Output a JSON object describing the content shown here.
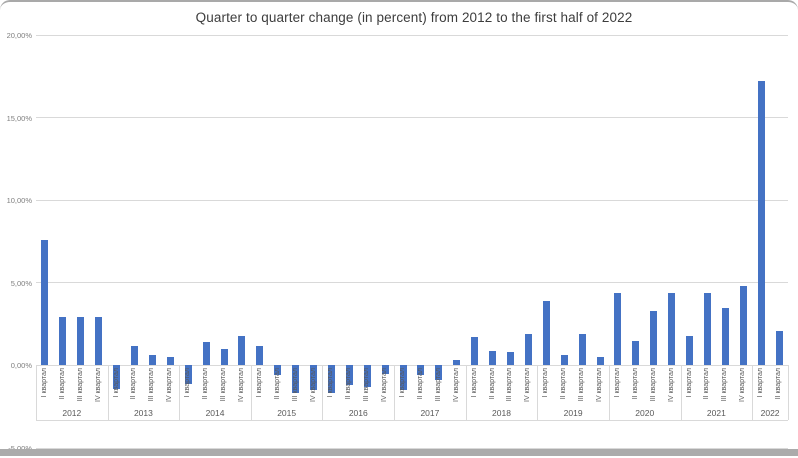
{
  "chart_data": {
    "type": "bar",
    "title": "Quarter to quarter change (in percent) from 2012 to the first half of 2022",
    "legend": "none",
    "grid": true,
    "colors": {
      "bar": "#4472C4",
      "gridline": "#D9D9D9",
      "category_label": "#595959",
      "value_label": "#7F7F7F",
      "title": "#3D3D3D"
    },
    "axes": {
      "y": {
        "min": -5,
        "max": 20,
        "step": 5,
        "tick_labels": [
          "20,00%",
          "15,00%",
          "10,00%",
          "5,00%",
          "0,00%",
          "-5,00%"
        ]
      },
      "x": {
        "level1": "quarters",
        "level2": "years"
      }
    },
    "quarter_labels": [
      "I квартал",
      "II квартал",
      "III квартал",
      "IV квартал"
    ],
    "groups": [
      {
        "year": "2012",
        "values": [
          7.6,
          2.9,
          2.9,
          2.9
        ]
      },
      {
        "year": "2013",
        "values": [
          -1.4,
          1.2,
          0.6,
          0.5
        ]
      },
      {
        "year": "2014",
        "values": [
          -1.1,
          1.4,
          1.0,
          1.8
        ]
      },
      {
        "year": "2015",
        "values": [
          1.2,
          -0.6,
          -1.7,
          -1.5
        ]
      },
      {
        "year": "2016",
        "values": [
          -1.7,
          -1.2,
          -1.3,
          -0.5
        ]
      },
      {
        "year": "2017",
        "values": [
          -1.5,
          -0.6,
          -0.9,
          0.3
        ]
      },
      {
        "year": "2018",
        "values": [
          1.7,
          0.9,
          0.8,
          1.9
        ]
      },
      {
        "year": "2019",
        "values": [
          3.9,
          0.6,
          1.9,
          0.5
        ]
      },
      {
        "year": "2020",
        "values": [
          4.4,
          1.5,
          3.3,
          4.4
        ]
      },
      {
        "year": "2021",
        "values": [
          1.8,
          4.4,
          3.5,
          4.8
        ]
      },
      {
        "year": "2022",
        "values": [
          17.2,
          2.1
        ]
      }
    ]
  }
}
